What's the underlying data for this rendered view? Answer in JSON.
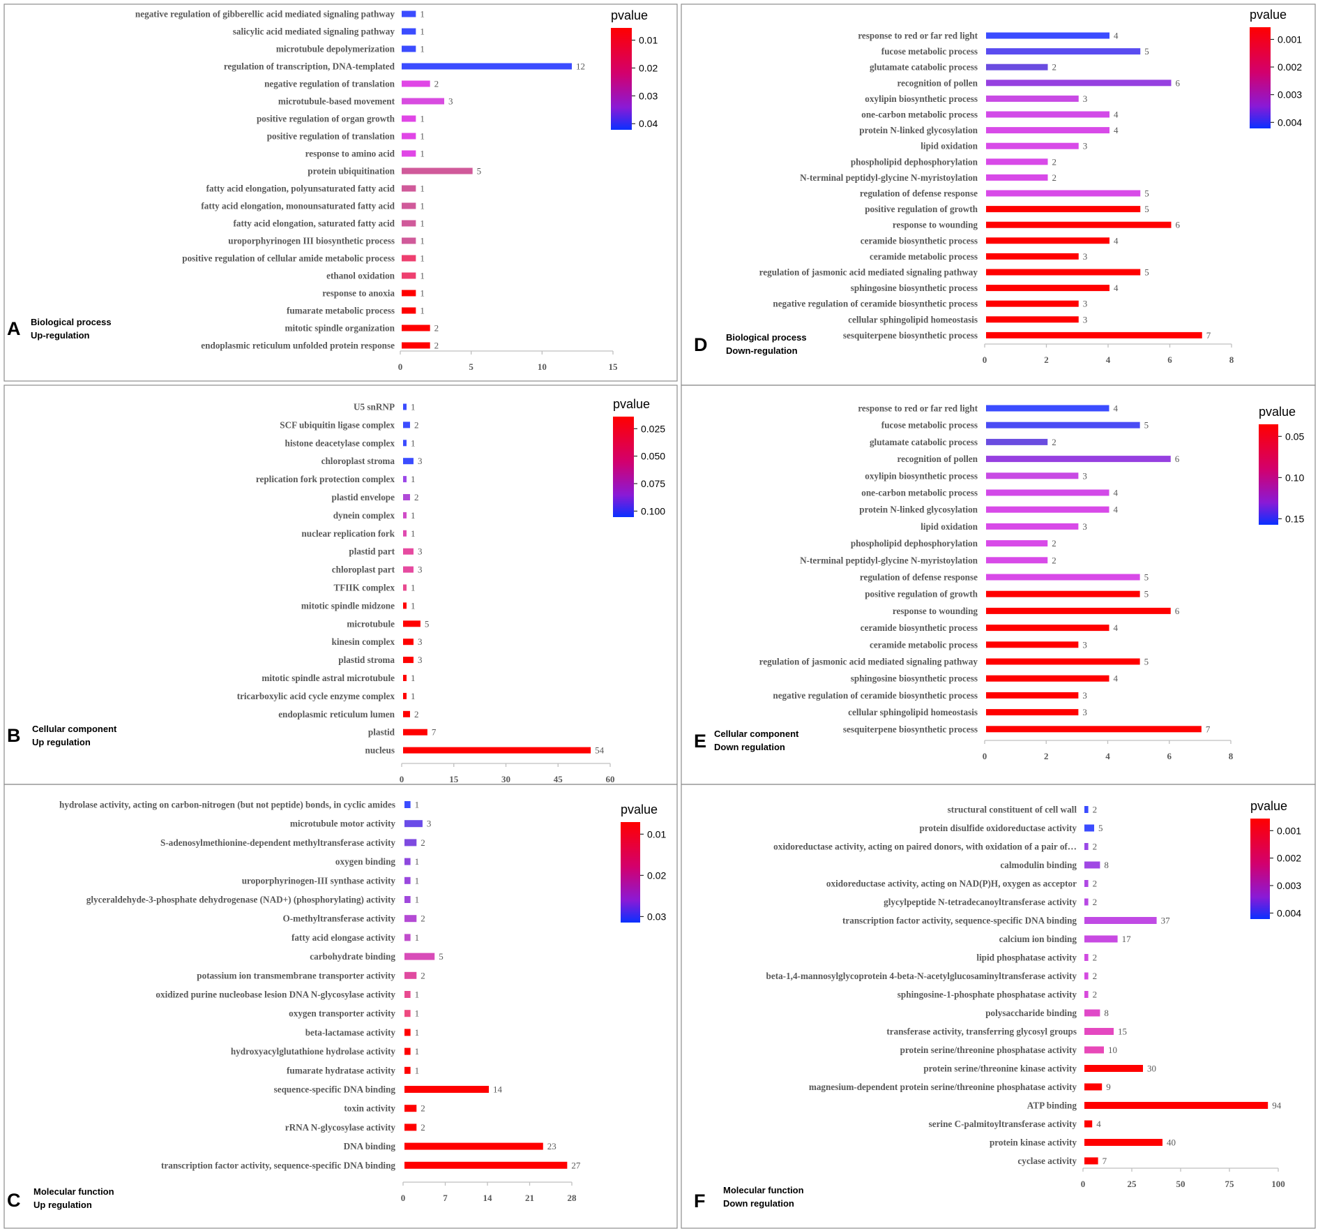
{
  "colors": {
    "high": "#ff0000",
    "mid": "#e046e6",
    "low": "#3b4cff",
    "frame": "#8c8c8c"
  },
  "chart_data": [
    {
      "id": "A",
      "type": "bar",
      "orientation": "horizontal",
      "letter": "A",
      "caption": [
        "Biological process",
        "Up-regulation"
      ],
      "legend_title": "pvalue",
      "legend_ticks": [
        "0.01",
        "0.02",
        "0.03",
        "0.04"
      ],
      "xlim": [
        0,
        15
      ],
      "xticks": [
        0,
        5,
        10,
        15
      ],
      "categories": [
        "negative regulation of gibberellic acid mediated signaling pathway",
        "salicylic acid mediated signaling pathway",
        "microtubule depolymerization",
        "regulation of transcription, DNA-templated",
        "negative regulation of translation",
        "microtubule-based movement",
        "positive regulation of organ growth",
        "positive regulation of translation",
        "response to amino acid",
        "protein ubiquitination",
        "fatty acid elongation, polyunsaturated fatty acid",
        "fatty acid elongation, monounsaturated fatty acid",
        "fatty acid elongation, saturated fatty acid",
        "uroporphyrinogen III biosynthetic process",
        "positive regulation of cellular amide metabolic process",
        "ethanol oxidation",
        "response to anoxia",
        "fumarate metabolic process",
        "mitotic spindle organization",
        "endoplasmic reticulum unfolded protein response"
      ],
      "values": [
        1,
        1,
        1,
        12,
        2,
        3,
        1,
        1,
        1,
        5,
        1,
        1,
        1,
        1,
        1,
        1,
        1,
        1,
        2,
        2
      ],
      "bar_colors": [
        "#3b4cff",
        "#3b4cff",
        "#3b4cff",
        "#3b4cff",
        "#e046e6",
        "#d84ce0",
        "#e046e6",
        "#e046e6",
        "#e046e6",
        "#d05a9a",
        "#d05a9a",
        "#d05a9a",
        "#d05a9a",
        "#d05a9a",
        "#ee3f6f",
        "#ee3f6f",
        "#ff0000",
        "#ff0000",
        "#ff0000",
        "#ff0000"
      ]
    },
    {
      "id": "B",
      "type": "bar",
      "orientation": "horizontal",
      "letter": "B",
      "caption": [
        "Cellular component",
        "Up regulation"
      ],
      "legend_title": "pvalue",
      "legend_ticks": [
        "0.025",
        "0.050",
        "0.075",
        "0.100"
      ],
      "xlim": [
        0,
        60
      ],
      "xticks": [
        0,
        15,
        30,
        45,
        60
      ],
      "categories": [
        "U5 snRNP",
        "SCF ubiquitin ligase complex",
        "histone deacetylase complex",
        "chloroplast stroma",
        "replication fork protection complex",
        "plastid envelope",
        "dynein complex",
        "nuclear replication fork",
        "plastid part",
        "chloroplast part",
        "TFIIK complex",
        "mitotic spindle midzone",
        "microtubule",
        "kinesin complex",
        "plastid stroma",
        "mitotic spindle astral microtubule",
        "tricarboxylic acid cycle enzyme complex",
        "endoplasmic reticulum lumen",
        "plastid",
        "nucleus"
      ],
      "values": [
        1,
        2,
        1,
        3,
        1,
        2,
        1,
        1,
        3,
        3,
        1,
        1,
        5,
        3,
        3,
        1,
        1,
        2,
        7,
        54
      ],
      "bar_colors": [
        "#3b4cff",
        "#3b4cff",
        "#3b4cff",
        "#3b4cff",
        "#9b48e8",
        "#b04ad8",
        "#d04cc8",
        "#e04ab0",
        "#e64aa0",
        "#e64aa0",
        "#e84a90",
        "#ff0000",
        "#ff0000",
        "#ff0000",
        "#ff0000",
        "#ff0000",
        "#ff0000",
        "#ff0000",
        "#ff0000",
        "#ff0000"
      ]
    },
    {
      "id": "C",
      "type": "bar",
      "orientation": "horizontal",
      "letter": "C",
      "caption": [
        "Molecular function",
        "Up regulation"
      ],
      "legend_title": "pvalue",
      "legend_ticks": [
        "0.01",
        "0.02",
        "0.03"
      ],
      "xlim": [
        0,
        28
      ],
      "xticks": [
        0,
        7,
        14,
        21,
        28
      ],
      "categories": [
        "hydrolase activity, acting on carbon-nitrogen (but not peptide) bonds, in cyclic amides",
        "microtubule motor activity",
        "S-adenosylmethionine-dependent methyltransferase activity",
        "oxygen binding",
        "uroporphyrinogen-III synthase activity",
        "glyceraldehyde-3-phosphate dehydrogenase (NAD+) (phosphorylating) activity",
        "O-methyltransferase activity",
        "fatty acid elongase activity",
        "carbohydrate binding",
        "potassium ion transmembrane transporter activity",
        "oxidized purine nucleobase lesion DNA N-glycosylase activity",
        "oxygen transporter activity",
        "beta-lactamase activity",
        "hydroxyacylglutathione hydrolase activity",
        "fumarate hydratase activity",
        "sequence-specific DNA binding",
        "toxin activity",
        "rRNA N-glycosylase activity",
        "DNA binding",
        "transcription factor activity, sequence-specific DNA binding"
      ],
      "values": [
        1,
        3,
        2,
        1,
        1,
        1,
        2,
        1,
        5,
        2,
        1,
        1,
        1,
        1,
        1,
        14,
        2,
        2,
        23,
        27
      ],
      "bar_colors": [
        "#3b4cff",
        "#6a4ce8",
        "#7e4ae0",
        "#8e48de",
        "#9a48de",
        "#a048dc",
        "#b44ad4",
        "#c04ccc",
        "#d84cb8",
        "#e04aa0",
        "#e84a90",
        "#ee4a80",
        "#ff0000",
        "#ff0000",
        "#ff0000",
        "#ff0000",
        "#ff0000",
        "#ff0000",
        "#ff0000",
        "#ff0000"
      ]
    },
    {
      "id": "D",
      "type": "bar",
      "orientation": "horizontal",
      "letter": "D",
      "caption": [
        "Biological process",
        "Down-regulation"
      ],
      "legend_title": "pvalue",
      "legend_ticks": [
        "0.001",
        "0.002",
        "0.003",
        "0.004"
      ],
      "xlim": [
        0,
        8
      ],
      "xticks": [
        0,
        2,
        4,
        6,
        8
      ],
      "categories": [
        "response to red or far red light",
        "fucose metabolic process",
        "glutamate catabolic process",
        "recognition of pollen",
        "oxylipin biosynthetic process",
        "one-carbon metabolic process",
        "protein N-linked glycosylation",
        "lipid oxidation",
        "phospholipid dephosphorylation",
        "N-terminal peptidyl-glycine N-myristoylation",
        "regulation of defense response",
        "positive regulation of growth",
        "response to wounding",
        "ceramide biosynthetic process",
        "ceramide metabolic process",
        "regulation of jasmonic acid mediated signaling pathway",
        "sphingosine biosynthetic process",
        "negative regulation of ceramide biosynthetic process",
        "cellular sphingolipid homeostasis",
        "sesquiterpene biosynthetic process"
      ],
      "values": [
        4,
        5,
        2,
        6,
        3,
        4,
        4,
        3,
        2,
        2,
        5,
        5,
        6,
        4,
        3,
        5,
        4,
        3,
        3,
        7
      ],
      "bar_colors": [
        "#3b4cff",
        "#5a4cf0",
        "#6a4ce0",
        "#9640e0",
        "#c84ae4",
        "#d24ae8",
        "#d84ae8",
        "#d84ae8",
        "#d84ae8",
        "#d84ae8",
        "#d84ae8",
        "#ff0000",
        "#ff0000",
        "#ff0000",
        "#ff0000",
        "#ff0000",
        "#ff0000",
        "#ff0000",
        "#ff0000",
        "#ff0000"
      ]
    },
    {
      "id": "E",
      "type": "bar",
      "orientation": "horizontal",
      "letter": "E",
      "caption": [
        "Cellular component",
        "Down regulation"
      ],
      "legend_title": "pvalue",
      "legend_ticks": [
        "0.05",
        "0.10",
        "0.15"
      ],
      "xlim": [
        0,
        8
      ],
      "xticks": [
        0,
        2,
        4,
        6,
        8
      ],
      "categories": [
        "response to red or far red light",
        "fucose metabolic process",
        "glutamate catabolic process",
        "recognition of pollen",
        "oxylipin biosynthetic process",
        "one-carbon metabolic process",
        "protein N-linked glycosylation",
        "lipid oxidation",
        "phospholipid dephosphorylation",
        "N-terminal peptidyl-glycine N-myristoylation",
        "regulation of defense response",
        "positive regulation of growth",
        "response to wounding",
        "ceramide biosynthetic process",
        "ceramide metabolic process",
        "regulation of jasmonic acid mediated signaling pathway",
        "sphingosine biosynthetic process",
        "negative regulation of ceramide biosynthetic process",
        "cellular sphingolipid homeostasis",
        "sesquiterpene biosynthetic process"
      ],
      "values": [
        4,
        5,
        2,
        6,
        3,
        4,
        4,
        3,
        2,
        2,
        5,
        5,
        6,
        4,
        3,
        5,
        4,
        3,
        3,
        7
      ],
      "bar_colors": [
        "#3b4cff",
        "#4a4cf4",
        "#6a4ce0",
        "#9640e0",
        "#c84ae4",
        "#d24ae8",
        "#d84ae8",
        "#d84ae8",
        "#d84ae8",
        "#d84ae8",
        "#d84ae8",
        "#ff0000",
        "#ff0000",
        "#ff0000",
        "#ff0000",
        "#ff0000",
        "#ff0000",
        "#ff0000",
        "#ff0000",
        "#ff0000"
      ]
    },
    {
      "id": "F",
      "type": "bar",
      "orientation": "horizontal",
      "letter": "F",
      "caption": [
        "Molecular function",
        "Down regulation"
      ],
      "legend_title": "pvalue",
      "legend_ticks": [
        "0.001",
        "0.002",
        "0.003",
        "0.004"
      ],
      "xlim": [
        0,
        100
      ],
      "xticks": [
        0,
        25,
        50,
        75,
        100
      ],
      "categories": [
        "structural constituent of cell wall",
        "protein disulfide oxidoreductase activity",
        "oxidoreductase activity, acting on paired donors, with oxidation of a pair of…",
        "calmodulin binding",
        "oxidoreductase activity, acting on NAD(P)H, oxygen as acceptor",
        "glycylpeptide N-tetradecanoyltransferase activity",
        "transcription factor activity, sequence-specific DNA binding",
        "calcium ion binding",
        "lipid phosphatase activity",
        "beta-1,4-mannosylglycoprotein 4-beta-N-acetylglucosaminyltransferase activity",
        "sphingosine-1-phosphate phosphatase activity",
        "polysaccharide binding",
        "transferase activity, transferring glycosyl groups",
        "protein serine/threonine phosphatase activity",
        "protein serine/threonine kinase activity",
        "magnesium-dependent protein serine/threonine phosphatase activity",
        "ATP binding",
        "serine C-palmitoyltransferase activity",
        "protein kinase activity",
        "cyclase activity"
      ],
      "values": [
        2,
        5,
        2,
        8,
        2,
        2,
        37,
        17,
        2,
        2,
        2,
        8,
        15,
        10,
        30,
        9,
        94,
        4,
        40,
        7
      ],
      "bar_colors": [
        "#3b4cff",
        "#3b4cff",
        "#9a48e6",
        "#a048e4",
        "#b048e4",
        "#b848e4",
        "#c04ae4",
        "#c84ae2",
        "#d04ae0",
        "#d44ae0",
        "#d84adc",
        "#e048c8",
        "#e448c0",
        "#e848b8",
        "#ff0000",
        "#ff0000",
        "#ff0000",
        "#ff0000",
        "#ff0000",
        "#ff0000"
      ]
    }
  ]
}
